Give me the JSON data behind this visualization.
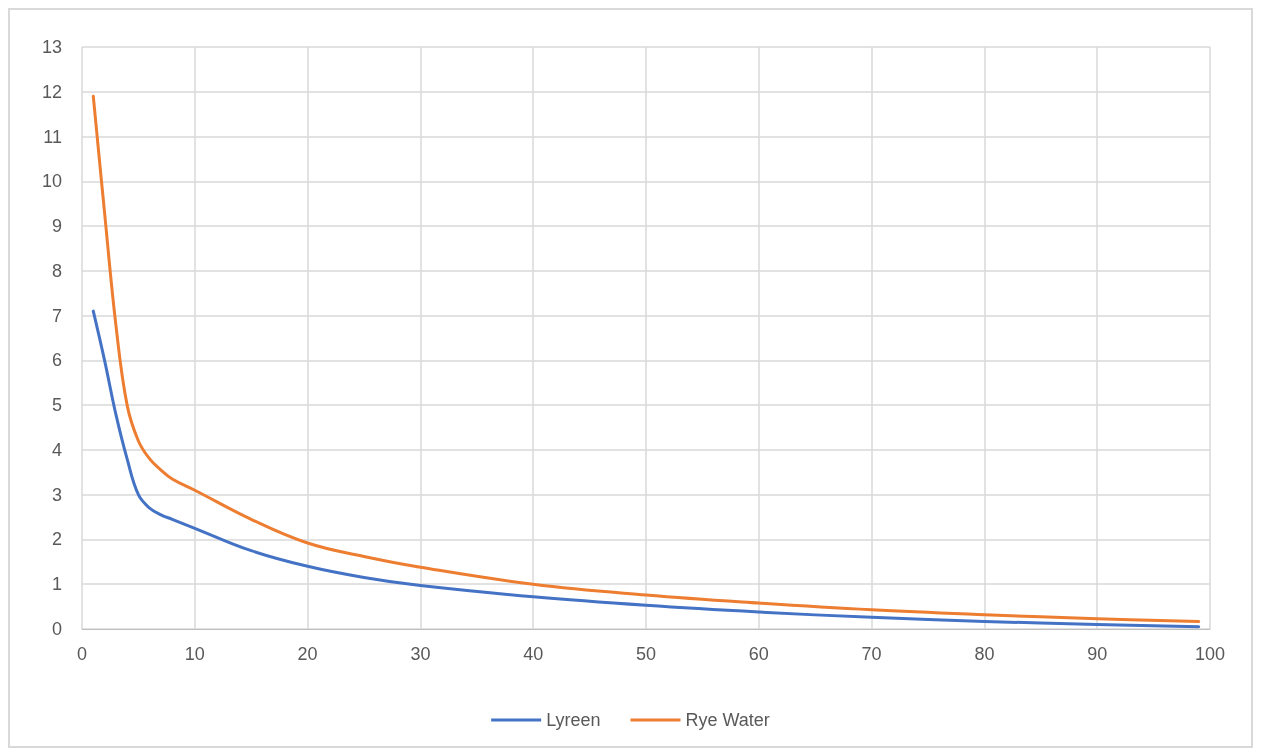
{
  "chart_data": {
    "type": "line",
    "x": [
      1,
      2,
      3,
      4,
      5,
      6,
      7,
      8,
      10,
      15,
      20,
      25,
      30,
      40,
      50,
      60,
      70,
      80,
      90,
      99
    ],
    "series": [
      {
        "name": "Lyreen",
        "color": "#4472c4",
        "values": [
          7.1,
          6.0,
          4.8,
          3.8,
          3.0,
          2.7,
          2.55,
          2.45,
          2.25,
          1.75,
          1.4,
          1.15,
          0.97,
          0.72,
          0.53,
          0.38,
          0.26,
          0.17,
          0.1,
          0.05
        ]
      },
      {
        "name": "Rye Water",
        "color": "#ed7d31",
        "values": [
          11.9,
          9.3,
          6.8,
          5.0,
          4.2,
          3.8,
          3.55,
          3.35,
          3.1,
          2.45,
          1.92,
          1.62,
          1.38,
          1.0,
          0.76,
          0.58,
          0.43,
          0.32,
          0.23,
          0.17
        ]
      }
    ],
    "xlim": [
      0,
      100
    ],
    "xticks": [
      0,
      10,
      20,
      30,
      40,
      50,
      60,
      70,
      80,
      90,
      100
    ],
    "ylim": [
      0,
      13
    ],
    "yticks": [
      0,
      1,
      2,
      3,
      4,
      5,
      6,
      7,
      8,
      9,
      10,
      11,
      12,
      13
    ],
    "grid": true,
    "legend": "bottom",
    "marker": "none",
    "line_style": "solid"
  }
}
